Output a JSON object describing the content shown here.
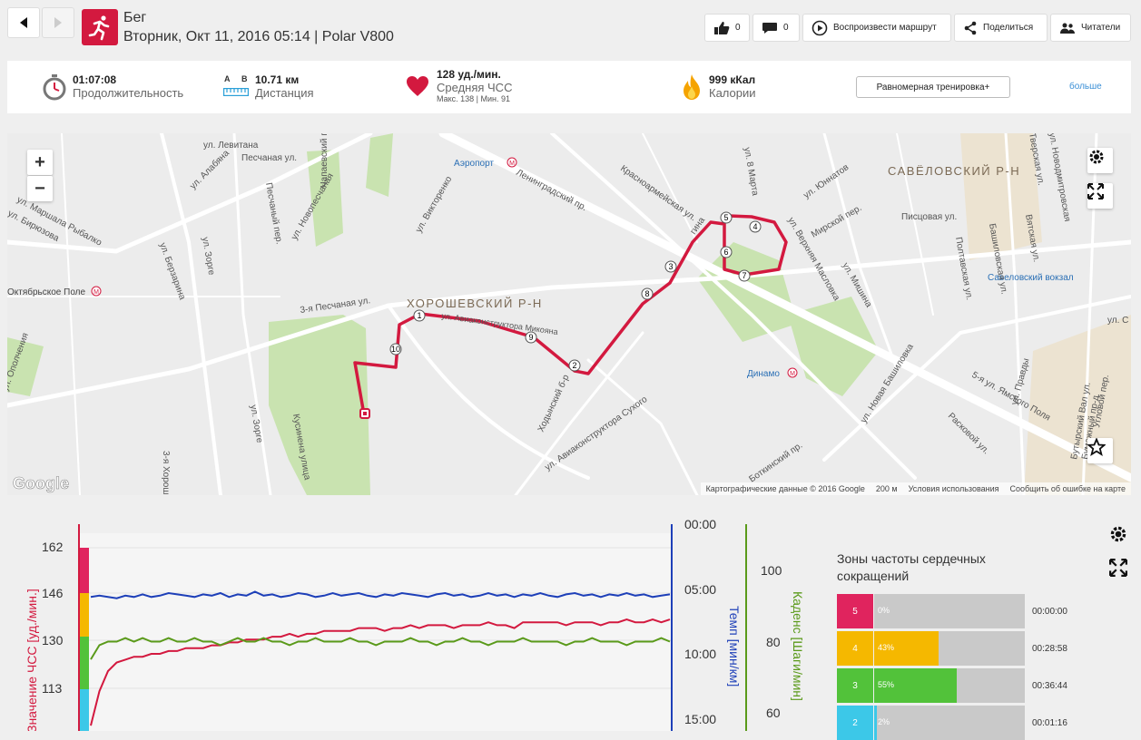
{
  "header": {
    "title": "Бег",
    "subtitle": "Вторник, Окт 11, 2016 05:14 | Polar V800",
    "back_icon": "arrow-left-icon",
    "forward_icon": "arrow-right-icon",
    "sport_icon": "running-icon",
    "actions": {
      "likes_count": "0",
      "comments_count": "0",
      "replay_label": "Воспроизвести маршрут",
      "share_label": "Поделиться",
      "readers_label": "Читатели"
    }
  },
  "summary": {
    "duration_value": "01:07:08",
    "duration_label": "Продолжительность",
    "distance_value": "10.71 км",
    "distance_label": "Дистанция",
    "distance_a": "A",
    "distance_b": "B",
    "hr_value": "128 уд./мин.",
    "hr_label": "Средняя ЧСС",
    "hr_minmax": "Макс. 138  |  Мин. 91",
    "calories_value": "999 кКал",
    "calories_label": "Калории",
    "training_button": "Равномерная тренировка+",
    "more_link": "больше"
  },
  "map": {
    "district_main": "ХОРОШЕВСКИЙ Р-Н",
    "district_savelovsky": "САВЁЛОВСКИЙ Р-Н",
    "labels": {
      "levitana": "ул. Левитана",
      "alabyana": "ул. Алабяна",
      "peschanaya": "Песчаная ул.",
      "chapaevsky": "Чапаевский пер.",
      "aeroport": "Аэропорт",
      "leningradsky": "Ленинградский пр.",
      "birjuzova": "ул. Бирюзова",
      "rybalko": "ул. Маршала Рыбалко",
      "berzarina": "ул. Берзарина",
      "zorge": "ул. Зорге",
      "oktyabrskoe": "Октябрьское Поле",
      "novopeschanaya": "ул. Новопесчаная",
      "pechany": "Песчаный пер.",
      "viktorenko": "ул. Викторенко",
      "peschanaya3": "3-я Песчаная ул.",
      "aviakonstruktora": "ул. Авиаконструктора Микояна",
      "opolcheniya": "ул. Ополчения",
      "zorge2": "ул. Зорге",
      "kusinena": "Кусинена улица",
      "khodynsky": "Ходынский б-р",
      "sukhogo": "ул. Авиаконструктора Сухого",
      "krasnoarmeyskaya": "Красноармейская ул.",
      "dinamo": "Динамо",
      "savelovsky_vokzal": "Савеловский вокзал",
      "pistsovaya": "Писцовая ул.",
      "novaya_bashilovka": "ул. Новая Башиловка",
      "botkinsky": "Боткинский пр.",
      "marta": "ул. 8 Марта",
      "yunnatov": "ул. Юннатов",
      "mishina": "ул. Мишина",
      "maslovka": "ул. Верхняя Масловка",
      "mirskoy": "Мирской пер.",
      "poltavskaya": "Полтавская ул.",
      "bashilovskaya": "Башиловская ул.",
      "yamskogo": "5-я ул. Ямского Поля",
      "raskovoy": "Расковой ул.",
      "pravdy": "ул. Правды",
      "butyrsky": "Бутырский Вал ул.",
      "ugol": "ул. С",
      "tverskaya": "Тверская ул.",
      "novodmitrovskaya": "ул. Новодмитровская",
      "gina": "гина",
      "vyatskaya": "Вятская ул.",
      "bumazhny": "Бумажный пр-д",
      "uglovoy": "Угловой пер.",
      "khoroshevo": "3-я Хорош"
    },
    "lap_markers": [
      "1",
      "2",
      "3",
      "4",
      "5",
      "6",
      "7",
      "8",
      "9",
      "10"
    ],
    "google_logo": "Google",
    "attribution": "Картографические данные © 2016 Google",
    "scale": "200 м",
    "terms": "Условия использования",
    "report": "Сообщить об ошибке на карте",
    "zoom_in": "+",
    "zoom_out": "−"
  },
  "chart_data": {
    "type": "line",
    "title": "",
    "x": [
      0,
      1,
      2,
      3,
      4,
      5,
      6,
      7,
      8,
      9,
      10,
      11,
      12,
      13,
      14,
      15,
      16,
      17,
      18,
      19,
      20,
      21,
      22,
      23,
      24,
      25,
      26,
      27,
      28,
      29,
      30,
      31,
      32,
      33,
      34,
      35,
      36,
      37,
      38,
      39,
      40,
      41,
      42,
      43,
      44,
      45,
      46,
      47,
      48,
      49,
      50,
      51,
      52,
      53,
      54,
      55,
      56,
      57,
      58,
      59,
      60,
      61,
      62,
      63,
      64,
      65,
      66,
      67
    ],
    "left_axis": {
      "label": "Значение ЧСС [уд./мин.]",
      "ticks": [
        "162",
        "146",
        "130",
        "113"
      ]
    },
    "right_axis_pace": {
      "label": "Темп [мин/км]",
      "ticks": [
        "00:00",
        "05:00",
        "10:00",
        "15:00"
      ]
    },
    "right_axis_cadence": {
      "label": "Каденс [Шаги/мин]",
      "ticks": [
        "100",
        "80",
        "60"
      ]
    },
    "series": [
      {
        "name": "Значение ЧСС [уд./мин.]",
        "color": "#d3193f",
        "values": [
          100,
          112,
          119,
          122,
          123,
          124,
          124,
          125,
          125,
          126,
          126,
          127,
          127,
          127,
          128,
          128,
          129,
          129,
          130,
          130,
          130,
          131,
          131,
          132,
          131,
          132,
          132,
          133,
          133,
          133,
          133,
          134,
          134,
          134,
          133,
          134,
          134,
          135,
          134,
          135,
          135,
          135,
          134,
          135,
          135,
          135,
          136,
          135,
          135,
          134,
          136,
          136,
          136,
          136,
          136,
          135,
          136,
          136,
          136,
          135,
          136,
          136,
          137,
          136,
          136,
          137,
          136,
          137
        ]
      },
      {
        "name": "Темп [мин/км]",
        "color": "#1d3fb8",
        "values": [
          5.6,
          5.5,
          5.6,
          5.7,
          5.5,
          5.6,
          5.4,
          5.6,
          5.5,
          5.3,
          5.4,
          5.5,
          5.6,
          5.4,
          5.5,
          5.3,
          5.6,
          5.4,
          5.5,
          5.2,
          5.5,
          5.4,
          5.6,
          5.5,
          5.3,
          5.4,
          5.6,
          5.5,
          5.3,
          5.5,
          5.4,
          5.3,
          5.5,
          5.6,
          5.4,
          5.5,
          5.3,
          5.4,
          5.5,
          5.6,
          5.4,
          5.3,
          5.5,
          5.4,
          5.6,
          5.5,
          5.3,
          5.5,
          5.4,
          5.6,
          5.4,
          5.5,
          5.3,
          5.5,
          5.6,
          5.4,
          5.3,
          5.5,
          5.4,
          5.6,
          5.4,
          5.5,
          5.3,
          5.5,
          5.4,
          5.6,
          5.5,
          5.4
        ]
      },
      {
        "name": "Каденс [Шаги/мин]",
        "color": "#5a9a1a",
        "values": [
          75,
          79,
          80,
          80,
          81,
          80,
          81,
          80,
          80,
          81,
          80,
          80,
          81,
          80,
          80,
          79,
          80,
          81,
          80,
          80,
          81,
          80,
          80,
          79,
          80,
          80,
          81,
          80,
          80,
          80,
          81,
          80,
          80,
          79,
          80,
          80,
          80,
          81,
          80,
          80,
          79,
          80,
          80,
          81,
          80,
          80,
          79,
          80,
          80,
          80,
          81,
          80,
          80,
          80,
          80,
          79,
          80,
          80,
          81,
          80,
          80,
          80,
          79,
          80,
          80,
          80,
          81,
          80
        ]
      }
    ]
  },
  "zones": {
    "title": "Зоны частоты сердечных сокращений",
    "items": [
      {
        "zone": "5",
        "percent": "0%",
        "time": "00:00:00",
        "fraction": 0.0,
        "color": "#e0245e"
      },
      {
        "zone": "4",
        "percent": "43%",
        "time": "00:28:58",
        "fraction": 0.43,
        "color": "#f5b800"
      },
      {
        "zone": "3",
        "percent": "55%",
        "time": "00:36:44",
        "fraction": 0.55,
        "color": "#52c23a"
      },
      {
        "zone": "2",
        "percent": "2%",
        "time": "00:01:16",
        "fraction": 0.02,
        "color": "#3cc8e8"
      }
    ]
  }
}
